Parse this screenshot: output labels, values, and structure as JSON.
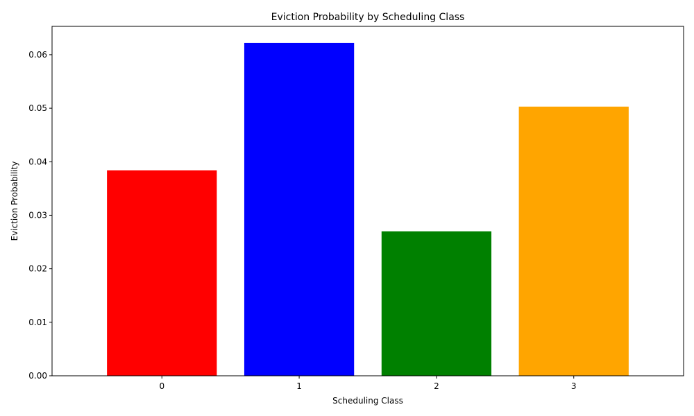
{
  "chart_data": {
    "type": "bar",
    "title": "Eviction Probability by Scheduling Class",
    "xlabel": "Scheduling Class",
    "ylabel": "Eviction Probability",
    "categories": [
      "0",
      "1",
      "2",
      "3"
    ],
    "values": [
      0.0384,
      0.0622,
      0.027,
      0.0503
    ],
    "colors": [
      "#ff0000",
      "#0000ff",
      "#008000",
      "#ffa500"
    ],
    "ylim": [
      0,
      0.0653
    ],
    "yticks": [
      0.0,
      0.01,
      0.02,
      0.03,
      0.04,
      0.05,
      0.06
    ],
    "ytick_labels": [
      "0.00",
      "0.01",
      "0.02",
      "0.03",
      "0.04",
      "0.05",
      "0.06"
    ],
    "grid": false,
    "legend": "none"
  }
}
